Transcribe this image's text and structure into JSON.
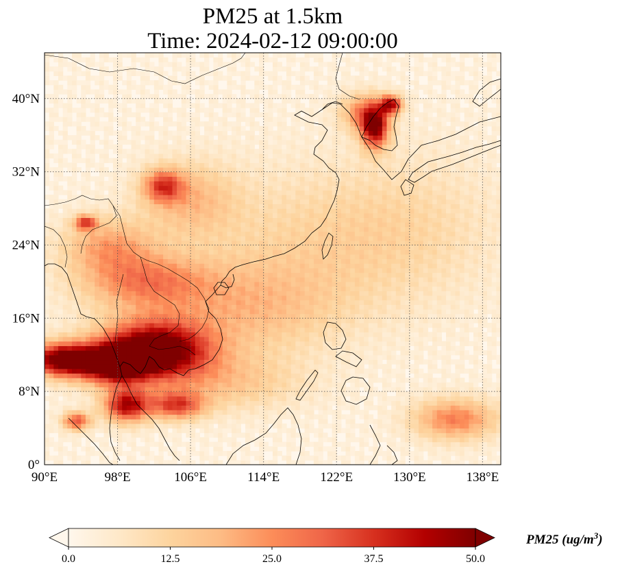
{
  "title": {
    "line1": "PM25 at 1.5km",
    "line2": "Time: 2024-02-12 09:00:00"
  },
  "map": {
    "projection": "PlateCarree",
    "extent": {
      "lon": [
        90,
        140
      ],
      "lat": [
        0,
        45
      ]
    },
    "gridlines": "dotted gray",
    "coastlines": true,
    "borders": true,
    "lon_ticks": [
      {
        "value": 90,
        "label": "90°E"
      },
      {
        "value": 98,
        "label": "98°E"
      },
      {
        "value": 106,
        "label": "106°E"
      },
      {
        "value": 114,
        "label": "114°E"
      },
      {
        "value": 122,
        "label": "122°E"
      },
      {
        "value": 130,
        "label": "130°E"
      },
      {
        "value": 138,
        "label": "138°E"
      }
    ],
    "lat_ticks": [
      {
        "value": 0,
        "label": "0°"
      },
      {
        "value": 8,
        "label": "8°N"
      },
      {
        "value": 16,
        "label": "16°N"
      },
      {
        "value": 24,
        "label": "24°N"
      },
      {
        "value": 32,
        "label": "32°N"
      },
      {
        "value": 40,
        "label": "40°N"
      }
    ],
    "field": "PM25",
    "colormap": "OrRd",
    "background_value": 3,
    "hotspots": [
      {
        "lon": 102,
        "lat": 12.5,
        "rx": 6,
        "ry": 3.2,
        "value": 55
      },
      {
        "lon": 92,
        "lat": 11.5,
        "rx": 3.5,
        "ry": 1.8,
        "value": 52
      },
      {
        "lon": 97.5,
        "lat": 11,
        "rx": 3.5,
        "ry": 2,
        "value": 44
      },
      {
        "lon": 99,
        "lat": 6.5,
        "rx": 2.5,
        "ry": 1.8,
        "value": 40
      },
      {
        "lon": 104.5,
        "lat": 6.5,
        "rx": 3,
        "ry": 1.5,
        "value": 30
      },
      {
        "lon": 101,
        "lat": 20,
        "rx": 7,
        "ry": 3,
        "value": 22
      },
      {
        "lon": 97,
        "lat": 24,
        "rx": 5,
        "ry": 3,
        "value": 18
      },
      {
        "lon": 103,
        "lat": 30.5,
        "rx": 2.2,
        "ry": 1.8,
        "value": 28
      },
      {
        "lon": 106,
        "lat": 29,
        "rx": 5,
        "ry": 4,
        "value": 14
      },
      {
        "lon": 112,
        "lat": 17,
        "rx": 10,
        "ry": 5,
        "value": 13
      },
      {
        "lon": 126.2,
        "lat": 36.8,
        "rx": 1.5,
        "ry": 2.3,
        "value": 42
      },
      {
        "lon": 128,
        "lat": 39.4,
        "rx": 1.2,
        "ry": 1,
        "value": 38
      },
      {
        "lon": 125,
        "lat": 38.5,
        "rx": 2.5,
        "ry": 2,
        "value": 22
      },
      {
        "lon": 135,
        "lat": 5,
        "rx": 4.5,
        "ry": 2.2,
        "value": 24
      },
      {
        "lon": 118,
        "lat": 24,
        "rx": 12,
        "ry": 8,
        "value": 8
      },
      {
        "lon": 130,
        "lat": 26,
        "rx": 10,
        "ry": 8,
        "value": 7
      },
      {
        "lon": 110,
        "lat": 9,
        "rx": 8,
        "ry": 3,
        "value": 12
      },
      {
        "lon": 94.5,
        "lat": 26.5,
        "rx": 1.2,
        "ry": 0.8,
        "value": 30
      },
      {
        "lon": 93.5,
        "lat": 4.8,
        "rx": 1.5,
        "ry": 1,
        "value": 30
      }
    ]
  },
  "colorbar": {
    "min": 0,
    "max": 50,
    "extend": "both",
    "ticks": [
      "0.0",
      "12.5",
      "25.0",
      "37.5",
      "50.0"
    ],
    "label": "PM25 (ug/m",
    "label_sup": "3",
    "label_close": ")",
    "colors": [
      "#fff7ec",
      "#fee8c8",
      "#fdd49e",
      "#fdbb84",
      "#fc8d59",
      "#ef6548",
      "#d7301f",
      "#b30000",
      "#7f0000"
    ]
  }
}
